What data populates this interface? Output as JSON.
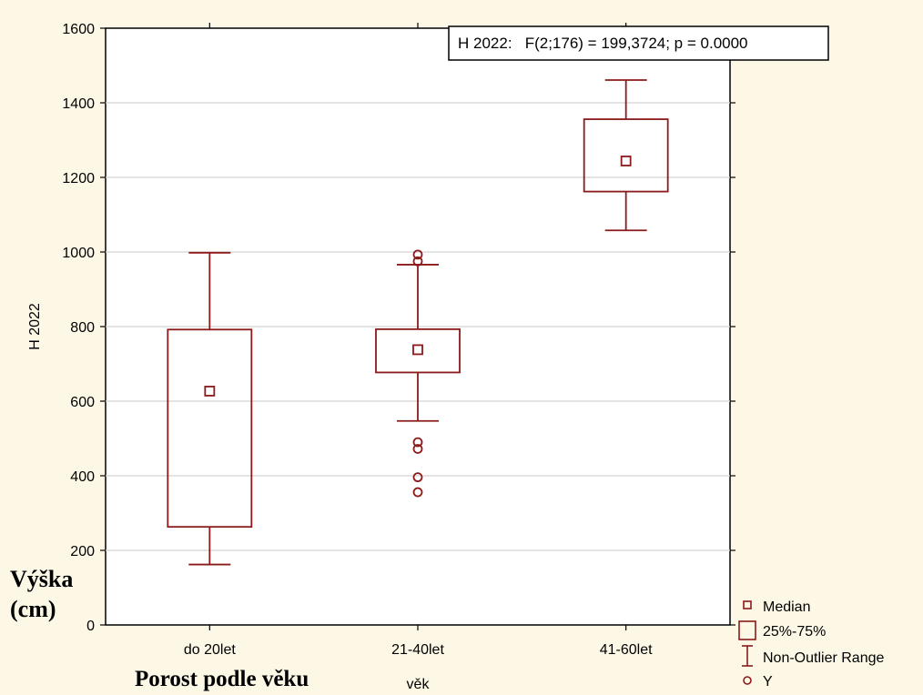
{
  "chart_data": {
    "type": "box",
    "ylabel": "H 2022",
    "xlabel": "věk",
    "ylim": [
      0,
      1600
    ],
    "yticks": [
      0,
      200,
      400,
      600,
      800,
      1000,
      1200,
      1400,
      1600
    ],
    "grid": true,
    "stat_annotation": "H 2022:   F(2;176) = 199,3724; p = 0.0000",
    "overlay_ylabel_line1": "Výška",
    "overlay_ylabel_line2": "(cm)",
    "overlay_xlabel": "Porost podle věku",
    "series": [
      {
        "category": "do 20let",
        "median": 627,
        "q1": 263,
        "q3": 792,
        "whisker_low": 162,
        "whisker_high": 998,
        "outliers": []
      },
      {
        "category": "21-40let",
        "median": 738,
        "q1": 677,
        "q3": 793,
        "whisker_low": 547,
        "whisker_high": 966,
        "outliers": [
          993,
          975,
          490,
          472,
          396,
          356
        ]
      },
      {
        "category": "41-60let",
        "median": 1244,
        "q1": 1162,
        "q3": 1356,
        "whisker_low": 1058,
        "whisker_high": 1461,
        "outliers": []
      }
    ],
    "legend": {
      "position": "bottom-right",
      "entries": [
        "Median",
        "25%-75%",
        "Non-Outlier Range",
        "Y"
      ]
    },
    "colors": {
      "box": "#8b1a1a",
      "grid": "#d4d4d4",
      "background": "#fdf8e6",
      "plot_background": "#ffffff"
    }
  }
}
